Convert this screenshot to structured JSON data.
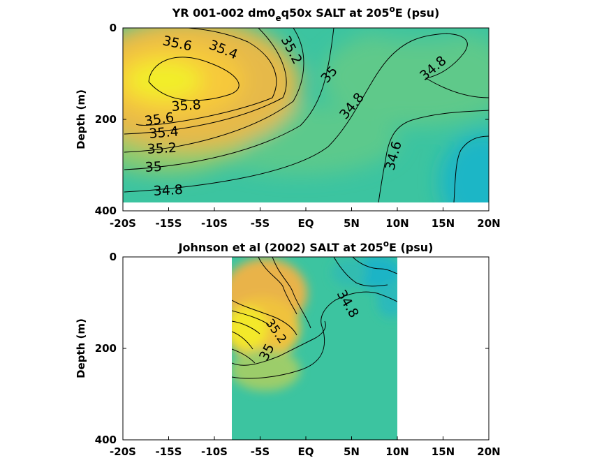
{
  "chart_data": [
    {
      "type": "heatmap",
      "title": "YR 001-002 dm0",
      "title_sub": "e",
      "title_rest": "q50x SALT at 205",
      "title_sup": "o",
      "title_end": "E (psu)",
      "ylabel": "Depth (m)",
      "xlim": [
        -20,
        20
      ],
      "ylim": [
        400,
        0
      ],
      "x_ticks": [
        -20,
        -15,
        -10,
        -5,
        0,
        5,
        10,
        15,
        20
      ],
      "x_tick_labels": [
        "-20S",
        "-15S",
        "-10S",
        "-5S",
        "EQ",
        "5N",
        "10N",
        "15N",
        "20N"
      ],
      "y_ticks": [
        0,
        200,
        400
      ],
      "y_tick_labels": [
        "0",
        "200",
        "400"
      ],
      "data_extent": {
        "x": [
          -20,
          20
        ],
        "depth": [
          0,
          380
        ]
      },
      "contour_levels": [
        34.6,
        34.8,
        35,
        35.2,
        35.4,
        35.6,
        35.8
      ],
      "contour_labels": [
        {
          "text": "35.6",
          "x": -15.5,
          "depth": 28
        },
        {
          "text": "35.4",
          "x": -9.5,
          "depth": 35
        },
        {
          "text": "35.2",
          "x": -3.5,
          "depth": 30
        },
        {
          "text": "35",
          "x": 1.5,
          "depth": 100
        },
        {
          "text": "34.8",
          "x": 16.5,
          "depth": 90
        },
        {
          "text": "35.8",
          "x": -12.5,
          "depth": 168
        },
        {
          "text": "34.8",
          "x": 4.5,
          "depth": 168
        },
        {
          "text": "35.6",
          "x": -16.5,
          "depth": 202
        },
        {
          "text": "35.4",
          "x": -16,
          "depth": 235
        },
        {
          "text": "35.2",
          "x": -16,
          "depth": 263
        },
        {
          "text": "34.6",
          "x": 10,
          "depth": 275
        },
        {
          "text": "35",
          "x": -17,
          "depth": 302
        },
        {
          "text": "34.8",
          "x": -14.5,
          "depth": 355
        }
      ]
    },
    {
      "type": "heatmap",
      "title": "Johnson et al (2002) SALT at 205",
      "title_sup": "o",
      "title_end": "E (psu)",
      "ylabel": "Depth (m)",
      "xlim": [
        -20,
        20
      ],
      "ylim": [
        400,
        0
      ],
      "x_ticks": [
        -20,
        -15,
        -10,
        -5,
        0,
        5,
        10,
        15,
        20
      ],
      "x_tick_labels": [
        "-20S",
        "-15S",
        "-10S",
        "-5S",
        "EQ",
        "5N",
        "10N",
        "15N",
        "20N"
      ],
      "y_ticks": [
        0,
        200,
        400
      ],
      "y_tick_labels": [
        "0",
        "200",
        "400"
      ],
      "data_extent": {
        "x": [
          -8,
          10
        ],
        "depth": [
          0,
          400
        ]
      },
      "contour_levels": [
        34.8,
        35,
        35.2,
        35.4,
        35.6,
        35.8
      ],
      "contour_labels": [
        {
          "text": "34.8",
          "x": 4.5,
          "depth": 100
        },
        {
          "text": "35.2",
          "x": -3.8,
          "depth": 165
        },
        {
          "text": "35",
          "x": -4.3,
          "depth": 210
        }
      ]
    }
  ]
}
